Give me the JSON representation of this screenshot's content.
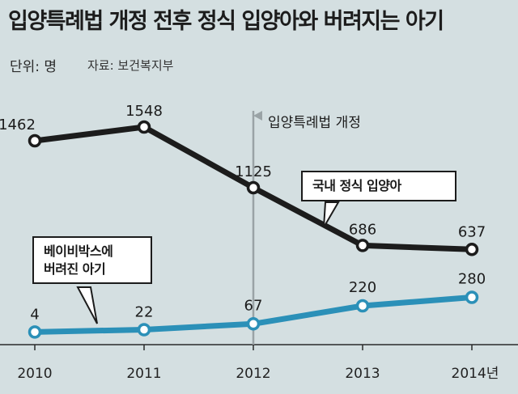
{
  "title": "입양특례법 개정 전후 정식 입양아와 버려지는 아기",
  "unit": "단위: 명",
  "source": "자료: 보건복지부",
  "marker_label": "입양특례법 개정",
  "colors": {
    "background": "#d4dfe1",
    "domestic_line": "#1c1c1c",
    "babybox_line": "#2b90b8",
    "marker_line": "#9aa3a6"
  },
  "chart_data": {
    "type": "line",
    "title": "입양특례법 개정 전후 정식 입양아와 버려지는 아기",
    "categories": [
      "2010",
      "2011",
      "2012",
      "2013",
      "2014년"
    ],
    "x": [
      2010,
      2011,
      2012,
      2013,
      2014
    ],
    "ylabel": "",
    "xlabel": "",
    "ylim": [
      0,
      1600
    ],
    "grid": false,
    "annotation": {
      "x": 2012,
      "text": "입양특례법 개정"
    },
    "series": [
      {
        "name": "국내 정식 입양아",
        "values": [
          1462,
          1548,
          1125,
          686,
          637
        ],
        "labels": [
          "1462",
          "1548",
          "1125",
          "686",
          "637"
        ],
        "color": "#1c1c1c"
      },
      {
        "name": "베이비박스에 버려진 아기",
        "values": [
          4,
          22,
          67,
          220,
          280
        ],
        "labels": [
          "4",
          "22",
          "67",
          "220",
          "280"
        ],
        "color": "#2b90b8"
      }
    ]
  },
  "callouts": {
    "domestic": "국내 정식 입양아",
    "babybox_line1": "베이비박스에",
    "babybox_line2": "버려진 아기"
  }
}
